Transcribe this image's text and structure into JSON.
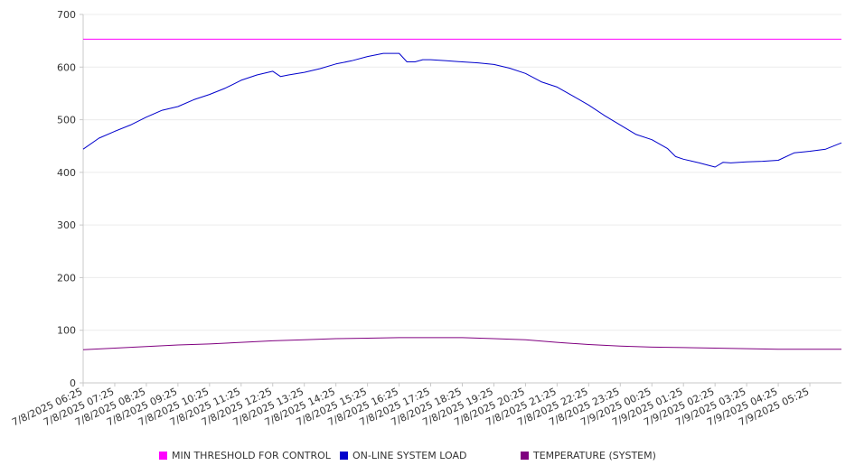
{
  "chart_data": {
    "type": "line",
    "title": "",
    "xlabel": "",
    "ylabel": "",
    "ylim": [
      0,
      700
    ],
    "y_ticks": [
      0,
      100,
      200,
      300,
      400,
      500,
      600,
      700
    ],
    "grid": true,
    "legend_position": "bottom",
    "x_start": "7/8/2025 06:25",
    "x_end": "7/9/2025 06:25",
    "x_tick_labels": [
      "7/8/2025 06:25",
      "7/8/2025 07:25",
      "7/8/2025 08:25",
      "7/8/2025 09:25",
      "7/8/2025 10:25",
      "7/8/2025 11:25",
      "7/8/2025 12:25",
      "7/8/2025 13:25",
      "7/8/2025 14:25",
      "7/8/2025 15:25",
      "7/8/2025 16:25",
      "7/8/2025 17:25",
      "7/8/2025 18:25",
      "7/8/2025 19:25",
      "7/8/2025 20:25",
      "7/8/2025 21:25",
      "7/8/2025 22:25",
      "7/8/2025 23:25",
      "7/9/2025 00:25",
      "7/9/2025 01:25",
      "7/9/2025 02:25",
      "7/9/2025 03:25",
      "7/9/2025 04:25",
      "7/9/2025 05:25"
    ],
    "series": [
      {
        "name": "MIN THRESHOLD FOR CONTROL",
        "color": "#ff00ff",
        "x": [
          "7/8/2025 06:25",
          "7/9/2025 06:25"
        ],
        "values": [
          653,
          653
        ]
      },
      {
        "name": "ON-LINE SYSTEM LOAD",
        "color": "#0000cc",
        "x": [
          "7/8/2025 06:25",
          "7/8/2025 06:55",
          "7/8/2025 07:25",
          "7/8/2025 07:55",
          "7/8/2025 08:25",
          "7/8/2025 08:55",
          "7/8/2025 09:25",
          "7/8/2025 09:55",
          "7/8/2025 10:25",
          "7/8/2025 10:55",
          "7/8/2025 11:25",
          "7/8/2025 11:55",
          "7/8/2025 12:25",
          "7/8/2025 12:40",
          "7/8/2025 12:55",
          "7/8/2025 13:25",
          "7/8/2025 13:55",
          "7/8/2025 14:25",
          "7/8/2025 14:55",
          "7/8/2025 15:25",
          "7/8/2025 15:55",
          "7/8/2025 16:25",
          "7/8/2025 16:40",
          "7/8/2025 16:55",
          "7/8/2025 17:10",
          "7/8/2025 17:25",
          "7/8/2025 17:55",
          "7/8/2025 18:25",
          "7/8/2025 18:55",
          "7/8/2025 19:25",
          "7/8/2025 19:55",
          "7/8/2025 20:25",
          "7/8/2025 20:55",
          "7/8/2025 21:25",
          "7/8/2025 21:55",
          "7/8/2025 22:25",
          "7/8/2025 22:55",
          "7/8/2025 23:25",
          "7/8/2025 23:55",
          "7/9/2025 00:25",
          "7/9/2025 00:55",
          "7/9/2025 01:10",
          "7/9/2025 01:25",
          "7/9/2025 01:55",
          "7/9/2025 02:25",
          "7/9/2025 02:40",
          "7/9/2025 02:55",
          "7/9/2025 03:25",
          "7/9/2025 03:55",
          "7/9/2025 04:25",
          "7/9/2025 04:55",
          "7/9/2025 05:25",
          "7/9/2025 05:55",
          "7/9/2025 06:25"
        ],
        "values": [
          444,
          465,
          478,
          490,
          505,
          518,
          525,
          538,
          548,
          560,
          575,
          585,
          592,
          582,
          585,
          590,
          597,
          606,
          612,
          620,
          626,
          626,
          610,
          610,
          614,
          614,
          612,
          610,
          608,
          605,
          598,
          588,
          572,
          562,
          545,
          528,
          508,
          490,
          472,
          462,
          445,
          430,
          425,
          418,
          410,
          419,
          418,
          420,
          421,
          423,
          437,
          440,
          444,
          456
        ]
      },
      {
        "name": "TEMPERATURE (SYSTEM)",
        "color": "#800080",
        "x": [
          "7/8/2025 06:25",
          "7/8/2025 07:25",
          "7/8/2025 08:25",
          "7/8/2025 09:25",
          "7/8/2025 10:25",
          "7/8/2025 11:25",
          "7/8/2025 12:25",
          "7/8/2025 13:25",
          "7/8/2025 14:25",
          "7/8/2025 15:25",
          "7/8/2025 16:25",
          "7/8/2025 17:25",
          "7/8/2025 18:25",
          "7/8/2025 19:25",
          "7/8/2025 20:25",
          "7/8/2025 21:25",
          "7/8/2025 22:25",
          "7/8/2025 23:25",
          "7/9/2025 00:25",
          "7/9/2025 01:25",
          "7/9/2025 02:25",
          "7/9/2025 03:25",
          "7/9/2025 04:25",
          "7/9/2025 05:25",
          "7/9/2025 06:25"
        ],
        "values": [
          63,
          66,
          69,
          72,
          74,
          77,
          80,
          82,
          84,
          85,
          86,
          86,
          86,
          84,
          82,
          77,
          73,
          70,
          68,
          67,
          66,
          65,
          64,
          64,
          64
        ]
      }
    ]
  }
}
